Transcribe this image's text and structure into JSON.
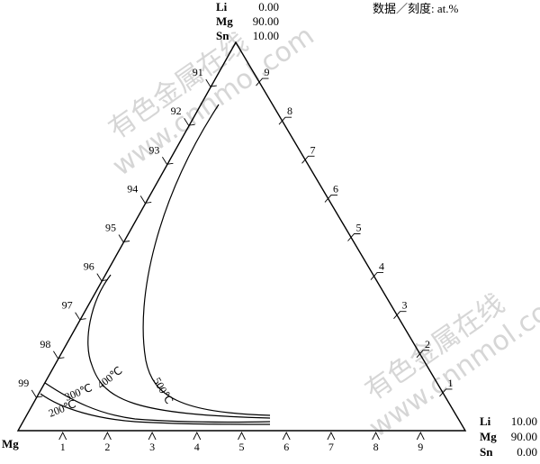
{
  "top_corner": {
    "rows": [
      {
        "element": "Li",
        "value": "0.00"
      },
      {
        "element": "Mg",
        "value": "90.00"
      },
      {
        "element": "Sn",
        "value": "10.00"
      }
    ]
  },
  "right_corner": {
    "rows": [
      {
        "element": "Li",
        "value": "10.00"
      },
      {
        "element": "Mg",
        "value": "90.00"
      },
      {
        "element": "Sn",
        "value": "0.00"
      }
    ]
  },
  "left_corner_label": "Mg",
  "units_note": "数据／刻度: at.%",
  "left_edge_ticks": [
    "91",
    "92",
    "93",
    "94",
    "95",
    "96",
    "97",
    "98",
    "99"
  ],
  "right_edge_ticks": [
    "9",
    "8",
    "7",
    "6",
    "5",
    "4",
    "3",
    "2",
    "1"
  ],
  "bottom_edge_ticks": [
    "1",
    "2",
    "3",
    "4",
    "5",
    "6",
    "7",
    "8",
    "9"
  ],
  "isotherms": [
    {
      "label": "200℃"
    },
    {
      "label": "300℃"
    },
    {
      "label": "400℃"
    },
    {
      "label": "500℃"
    }
  ],
  "watermark": {
    "text_top": "有色金属在线",
    "text_bottom": "www.cnnmol.com"
  }
}
